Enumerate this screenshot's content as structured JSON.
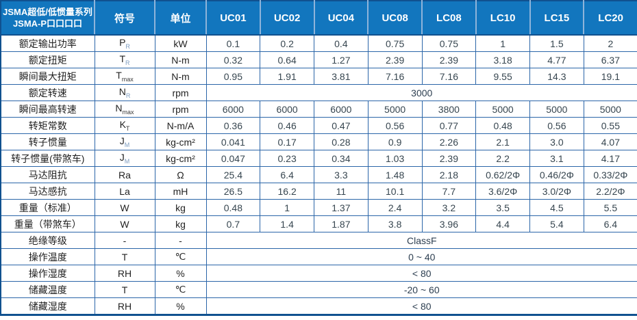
{
  "colors": {
    "header_bg": "#1276be",
    "header_divider": "#8fb4da",
    "inner_border": "#2a65a8",
    "outer_border": "#10518f",
    "header_text": "#ffffff",
    "label_text": "#1f1f1f",
    "value_text": "#36454f",
    "subscript_blue": "#7d9cc0"
  },
  "header": {
    "title_line1": "JSMA超低/低惯量系列",
    "title_line2": "JSMA-P口口口口",
    "symbol_col": "符号",
    "unit_col": "单位",
    "models": [
      "UC01",
      "UC02",
      "UC04",
      "UC08",
      "LC08",
      "LC10",
      "LC15",
      "LC20"
    ]
  },
  "rows": [
    {
      "label": "额定输出功率",
      "symbol": {
        "base": "P",
        "sub": "R",
        "tone": "blue"
      },
      "unit": "kW",
      "values": [
        "0.1",
        "0.2",
        "0.4",
        "0.75",
        "0.75",
        "1",
        "1.5",
        "2"
      ]
    },
    {
      "label": "额定扭矩",
      "symbol": {
        "base": "T",
        "sub": "R",
        "tone": "blue"
      },
      "unit": "N-m",
      "values": [
        "0.32",
        "0.64",
        "1.27",
        "2.39",
        "2.39",
        "3.18",
        "4.77",
        "6.37"
      ]
    },
    {
      "label": "瞬间最大扭矩",
      "symbol": {
        "base": "T",
        "sub": "max",
        "tone": "dark"
      },
      "unit": "N-m",
      "values": [
        "0.95",
        "1.91",
        "3.81",
        "7.16",
        "7.16",
        "9.55",
        "14.3",
        "19.1"
      ]
    },
    {
      "label": "额定转速",
      "symbol": {
        "base": "N",
        "sub": "R",
        "tone": "blue"
      },
      "unit": "rpm",
      "merged": "3000"
    },
    {
      "label": "瞬间最高转速",
      "symbol": {
        "base": "N",
        "sub": "max",
        "tone": "dark"
      },
      "unit": "rpm",
      "values": [
        "6000",
        "6000",
        "6000",
        "5000",
        "3800",
        "5000",
        "5000",
        "5000"
      ]
    },
    {
      "label": "转矩常数",
      "symbol": {
        "base": "K",
        "sub": "T",
        "tone": "dark"
      },
      "unit": "N-m/A",
      "values": [
        "0.36",
        "0.46",
        "0.47",
        "0.56",
        "0.77",
        "0.48",
        "0.56",
        "0.55"
      ]
    },
    {
      "label": "转子惯量",
      "symbol": {
        "base": "J",
        "sub": "M",
        "tone": "blue"
      },
      "unit": "kg-cm²",
      "values": [
        "0.041",
        "0.17",
        "0.28",
        "0.9",
        "2.26",
        "2.1",
        "3.0",
        "4.07"
      ]
    },
    {
      "label": "转子惯量(带煞车)",
      "symbol": {
        "base": "J",
        "sub": "M",
        "tone": "blue"
      },
      "unit": "kg-cm²",
      "values": [
        "0.047",
        "0.23",
        "0.34",
        "1.03",
        "2.39",
        "2.2",
        "3.1",
        "4.17"
      ]
    },
    {
      "label": "马达阻抗",
      "symbol": {
        "base": "Ra",
        "sub": "",
        "tone": "dark"
      },
      "unit": "Ω",
      "values": [
        "25.4",
        "6.4",
        "3.3",
        "1.48",
        "2.18",
        "0.62/2Φ",
        "0.46/2Φ",
        "0.33/2Φ"
      ]
    },
    {
      "label": "马达感抗",
      "symbol": {
        "base": "La",
        "sub": "",
        "tone": "dark"
      },
      "unit": "mH",
      "values": [
        "26.5",
        "16.2",
        "11",
        "10.1",
        "7.7",
        "3.6/2Φ",
        "3.0/2Φ",
        "2.2/2Φ"
      ]
    },
    {
      "label": "重量（标准）",
      "symbol": {
        "base": "W",
        "sub": "",
        "tone": "dark"
      },
      "unit": "kg",
      "values": [
        "0.48",
        "1",
        "1.37",
        "2.4",
        "3.2",
        "3.5",
        "4.5",
        "5.5"
      ]
    },
    {
      "label": "重量（带煞车）",
      "symbol": {
        "base": "W",
        "sub": "",
        "tone": "dark"
      },
      "unit": "kg",
      "values": [
        "0.7",
        "1.4",
        "1.87",
        "3.8",
        "3.96",
        "4.4",
        "5.4",
        "6.4"
      ]
    },
    {
      "label": "绝缘等级",
      "symbol": {
        "base": "-",
        "sub": "",
        "tone": "dark"
      },
      "unit": "-",
      "merged": "ClassF"
    },
    {
      "label": "操作温度",
      "symbol": {
        "base": "T",
        "sub": "",
        "tone": "dark"
      },
      "unit": "℃",
      "merged": "0 ~ 40"
    },
    {
      "label": "操作湿度",
      "symbol": {
        "base": "RH",
        "sub": "",
        "tone": "dark"
      },
      "unit": "%",
      "merged": "< 80"
    },
    {
      "label": "储藏温度",
      "symbol": {
        "base": "T",
        "sub": "",
        "tone": "dark"
      },
      "unit": "℃",
      "merged": "-20 ~ 60"
    },
    {
      "label": "储藏湿度",
      "symbol": {
        "base": "RH",
        "sub": "",
        "tone": "dark"
      },
      "unit": "%",
      "merged": "< 80"
    }
  ]
}
